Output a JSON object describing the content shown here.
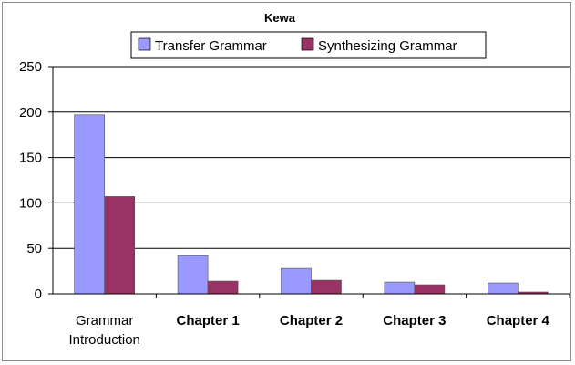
{
  "chart_data": {
    "type": "bar",
    "title": "Kewa",
    "categories": [
      "Grammar Introduction",
      "Chapter 1",
      "Chapter 2",
      "Chapter 3",
      "Chapter 4"
    ],
    "category_lines": [
      [
        "Grammar",
        "Introduction"
      ],
      [
        "Chapter 1"
      ],
      [
        "Chapter 2"
      ],
      [
        "Chapter 3"
      ],
      [
        "Chapter 4"
      ]
    ],
    "series": [
      {
        "name": "Transfer Grammar",
        "values": [
          197,
          42,
          28,
          13,
          12
        ],
        "color": "#9999ff"
      },
      {
        "name": "Synthesizing Grammar",
        "values": [
          107,
          14,
          15,
          10,
          2
        ],
        "color": "#993366"
      }
    ],
    "ylim": [
      0,
      250
    ],
    "yticks": [
      0,
      50,
      100,
      150,
      200,
      250
    ],
    "xlabel": "",
    "ylabel": "",
    "grid": true,
    "legend_position": "top"
  }
}
